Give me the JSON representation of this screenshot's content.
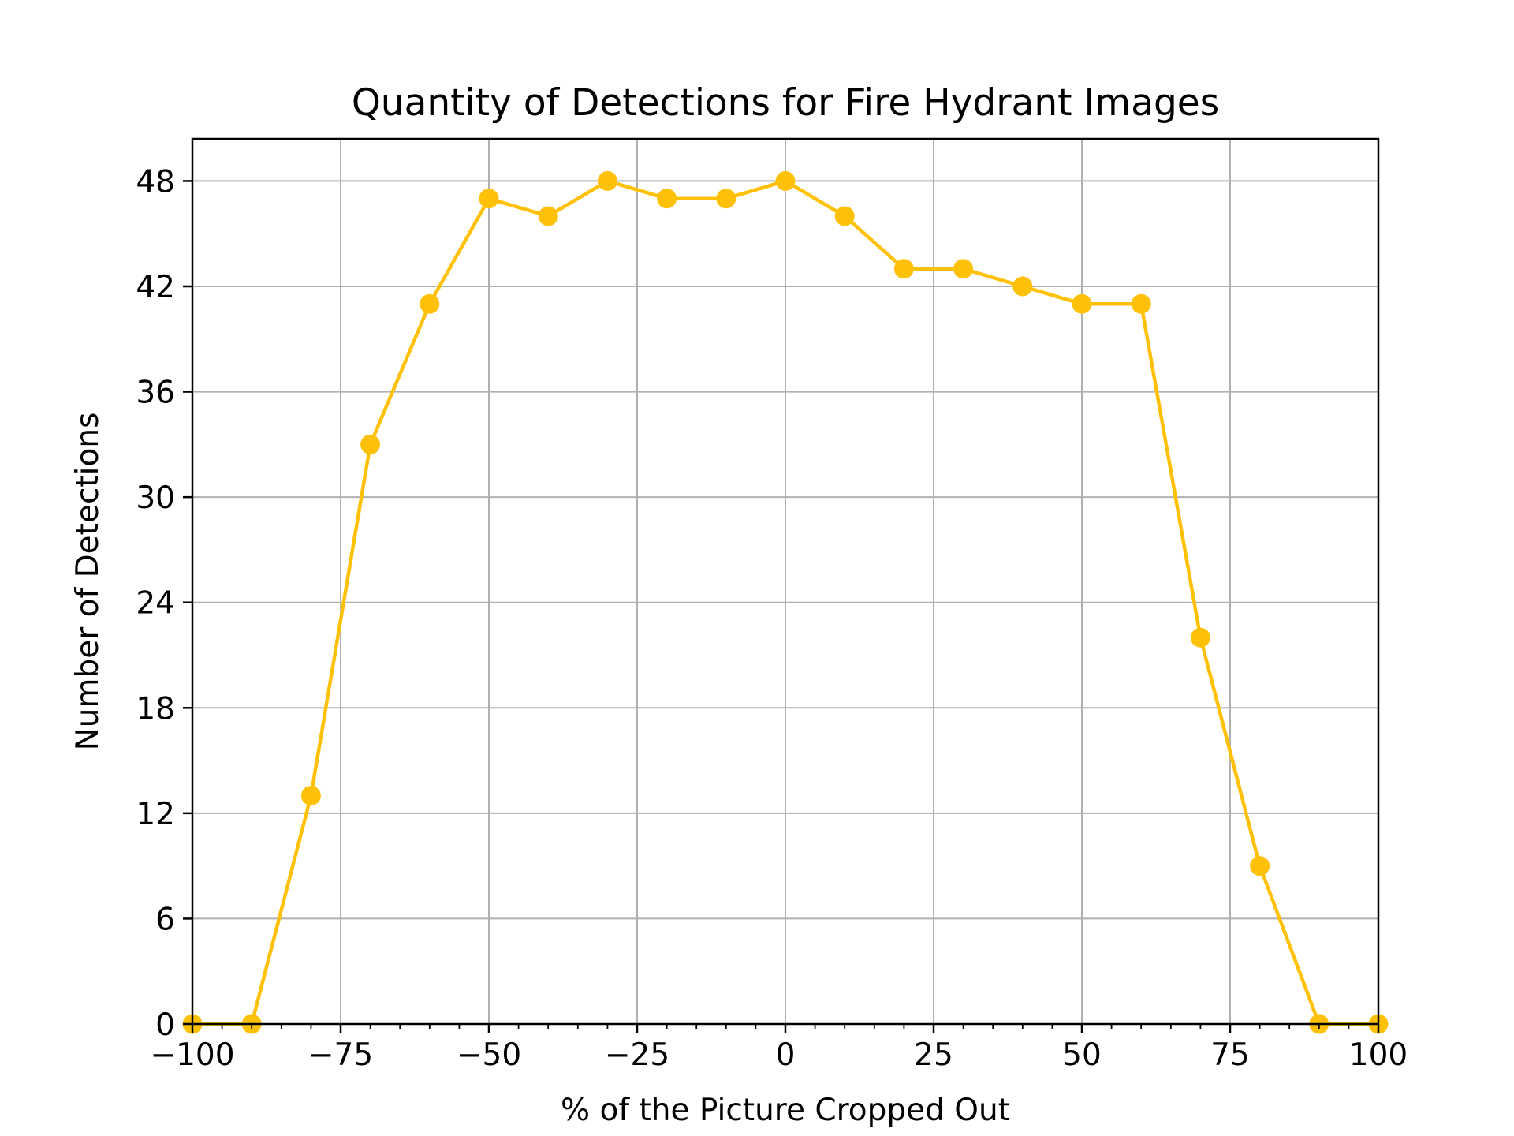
{
  "chart_data": {
    "type": "line",
    "title": "Quantity of Detections for Fire Hydrant Images",
    "xlabel": "% of the Picture Cropped Out",
    "ylabel": "Number of Detections",
    "xlim": [
      -100,
      100
    ],
    "ylim": [
      0,
      50.4
    ],
    "xticks": [
      -100,
      -75,
      -50,
      -25,
      0,
      25,
      50,
      75,
      100
    ],
    "xtick_labels": [
      "−100",
      "−75",
      "−50",
      "−25",
      "0",
      "25",
      "50",
      "75",
      "100"
    ],
    "yticks": [
      0,
      6,
      12,
      18,
      24,
      30,
      36,
      42,
      48
    ],
    "ytick_labels": [
      "0",
      "6",
      "12",
      "18",
      "24",
      "30",
      "36",
      "42",
      "48"
    ],
    "grid": true,
    "series": [
      {
        "color": "#FFC107",
        "marker": "circle",
        "x": [
          -100,
          -90,
          -80,
          -70,
          -60,
          -50,
          -40,
          -30,
          -20,
          -10,
          0,
          10,
          20,
          30,
          40,
          50,
          60,
          70,
          80,
          90,
          100
        ],
        "y": [
          0,
          0,
          13,
          33,
          41,
          47,
          46,
          48,
          47,
          47,
          48,
          46,
          43,
          43,
          42,
          41,
          41,
          22,
          9,
          0,
          0
        ]
      }
    ]
  }
}
